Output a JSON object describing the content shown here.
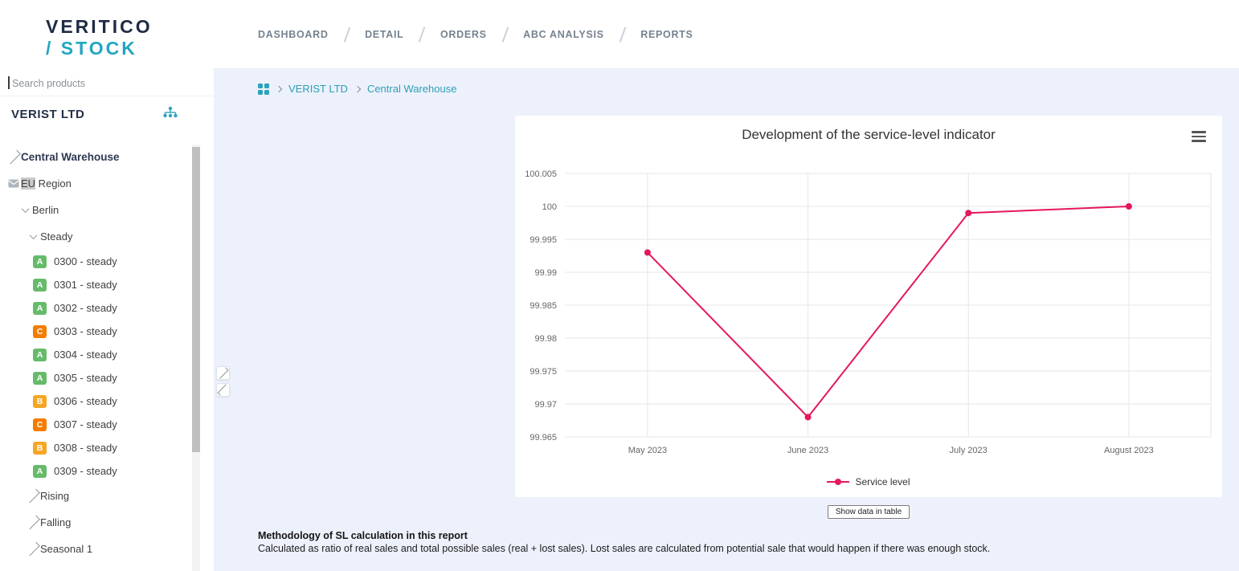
{
  "logo": {
    "line1": "VERITICO",
    "line2": "/ STOCK"
  },
  "search": {
    "placeholder": "Search products"
  },
  "client": {
    "name": "VERIST LTD"
  },
  "topnav": {
    "items": [
      "DASHBOARD",
      "DETAIL",
      "ORDERS",
      "ABC ANALYSIS",
      "REPORTS"
    ]
  },
  "breadcrumb": {
    "items": [
      "VERIST LTD",
      "Central Warehouse"
    ]
  },
  "tree": {
    "items": [
      {
        "label": "Central Warehouse",
        "level": 0,
        "toggle": "collapsed",
        "bold": true
      },
      {
        "label": "EU Region",
        "level": 0,
        "icon": "mail-icon",
        "highlight": "EU"
      },
      {
        "label": "Berlin",
        "level": 1,
        "toggle": "expanded"
      },
      {
        "label": "Steady",
        "level": 2,
        "toggle": "expanded"
      },
      {
        "label": "0300 - steady",
        "level": 3,
        "badge": "A"
      },
      {
        "label": "0301 - steady",
        "level": 3,
        "badge": "A"
      },
      {
        "label": "0302 - steady",
        "level": 3,
        "badge": "A"
      },
      {
        "label": "0303 - steady",
        "level": 3,
        "badge": "C"
      },
      {
        "label": "0304 - steady",
        "level": 3,
        "badge": "A"
      },
      {
        "label": "0305 - steady",
        "level": 3,
        "badge": "A"
      },
      {
        "label": "0306 - steady",
        "level": 3,
        "badge": "B"
      },
      {
        "label": "0307 - steady",
        "level": 3,
        "badge": "C"
      },
      {
        "label": "0308 - steady",
        "level": 3,
        "badge": "B"
      },
      {
        "label": "0309 - steady",
        "level": 3,
        "badge": "A"
      },
      {
        "label": "Rising",
        "level": 2,
        "toggle": "collapsed"
      },
      {
        "label": "Falling",
        "level": 2,
        "toggle": "collapsed"
      },
      {
        "label": "Seasonal 1",
        "level": 2,
        "toggle": "collapsed"
      }
    ]
  },
  "badge_colors": {
    "A": "#66bb6a",
    "B": "#f6a623",
    "C": "#f57c00"
  },
  "colors": {
    "accent_teal": "#2aa3bb",
    "navy": "#1f2b45",
    "series_pink": "#e5175e",
    "content_bg": "#edf1fb"
  },
  "chart_data": {
    "type": "line",
    "title": "Development of the service-level indicator",
    "categories": [
      "May 2023",
      "June 2023",
      "July 2023",
      "August 2023"
    ],
    "series": [
      {
        "name": "Service level",
        "values": [
          99.993,
          99.968,
          99.999,
          100.0
        ],
        "color": "#e5175e"
      }
    ],
    "yticks": [
      99.965,
      99.97,
      99.975,
      99.98,
      99.985,
      99.99,
      99.995,
      100,
      100.005
    ],
    "ylim": [
      99.965,
      100.005
    ],
    "xlabel": "",
    "ylabel": "",
    "grid": true,
    "legend_position": "bottom"
  },
  "table_button": {
    "label": "Show data in table"
  },
  "methodology": {
    "title": "Methodology of SL calculation in this report",
    "body": "Calculated as ratio of real sales and total possible sales (real + lost sales). Lost sales are calculated from potential sale that would happen if there was enough stock."
  }
}
